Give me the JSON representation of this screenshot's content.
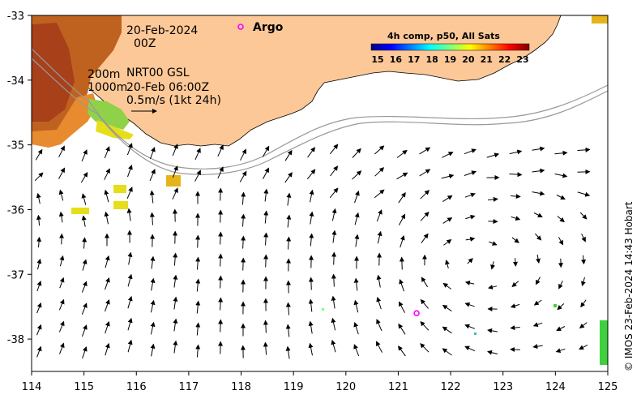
{
  "map": {
    "date": "20-Feb-2024",
    "time": "00Z",
    "isobath_label_200": "200m",
    "isobath_label_1000": "1000m",
    "product_line": "NRT00 GSL",
    "product_time": "20-Feb 06:00Z",
    "scale_label": "0.5m/s (1kt 24h)",
    "argo_label": "Argo",
    "credit": "© IMOS 23-Feb-2024 14:43 Hobart",
    "colorbar": {
      "title": "4h comp, p50, All Sats",
      "ticks": [
        "15",
        "16",
        "17",
        "18",
        "19",
        "20",
        "21",
        "22",
        "23"
      ],
      "colors": [
        "#00007f",
        "#0000ff",
        "#007fff",
        "#00ffff",
        "#7fff7f",
        "#ffff00",
        "#ff7f00",
        "#ff0000",
        "#7f0000"
      ]
    },
    "x_axis": {
      "ticks": [
        "114",
        "115",
        "116",
        "117",
        "118",
        "119",
        "120",
        "121",
        "122",
        "123",
        "124",
        "125"
      ],
      "range": [
        114,
        125
      ]
    },
    "y_axis": {
      "ticks": [
        "-33",
        "-34",
        "-35",
        "-36",
        "-37",
        "-38"
      ],
      "range": [
        -38.5,
        -33
      ]
    },
    "colors": {
      "land": "#fdc897",
      "argo": "#ff00ff",
      "isobath": "#999999"
    },
    "argo_float": {
      "lon": 121.35,
      "lat": -37.6
    }
  }
}
